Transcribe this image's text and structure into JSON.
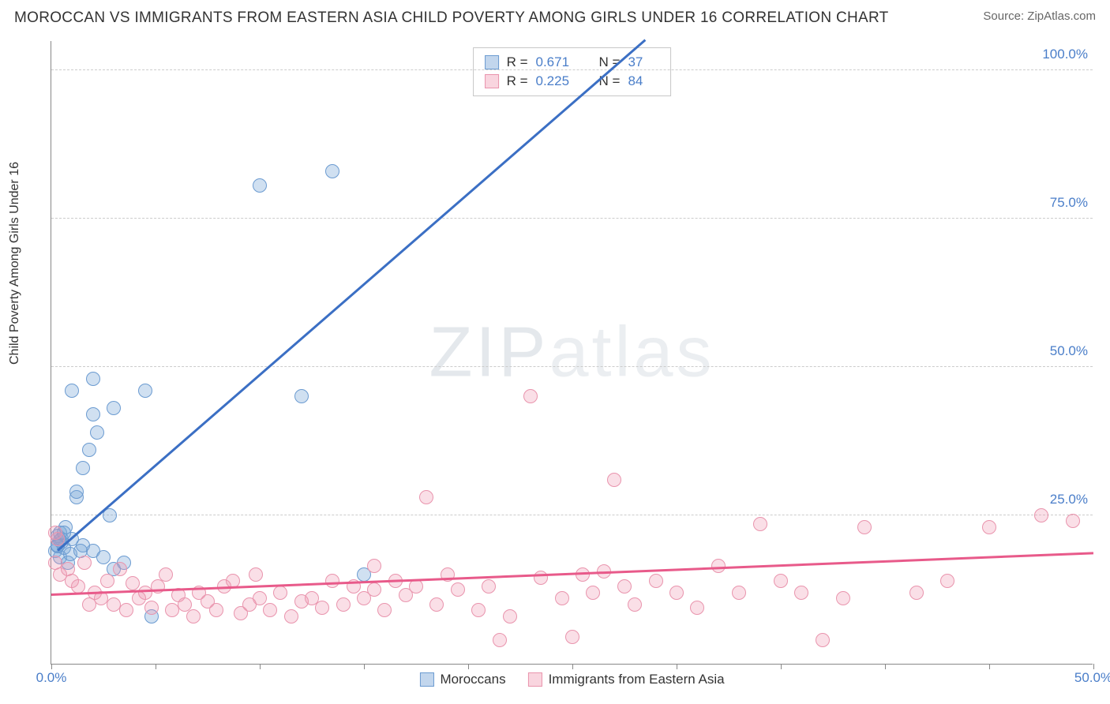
{
  "header": {
    "title": "MOROCCAN VS IMMIGRANTS FROM EASTERN ASIA CHILD POVERTY AMONG GIRLS UNDER 16 CORRELATION CHART",
    "source_label": "Source: ",
    "source_name": "ZipAtlas.com"
  },
  "chart": {
    "type": "scatter",
    "ylabel": "Child Poverty Among Girls Under 16",
    "watermark": "ZIPatlas",
    "background_color": "#ffffff",
    "grid_color": "#cccccc",
    "axis_color": "#888888",
    "xlim": [
      0,
      50
    ],
    "ylim": [
      0,
      105
    ],
    "xtick_positions": [
      0,
      5,
      10,
      15,
      20,
      25,
      30,
      35,
      40,
      45,
      50
    ],
    "xtick_labels": {
      "0": "0.0%",
      "50": "50.0%"
    },
    "ytick_positions": [
      25,
      50,
      75,
      100
    ],
    "ytick_labels": {
      "25": "25.0%",
      "50": "50.0%",
      "75": "75.0%",
      "100": "100.0%"
    },
    "marker_radius": 9,
    "series": [
      {
        "name": "Moroccans",
        "color_fill": "rgba(120,165,216,0.35)",
        "color_stroke": "#6b9bd1",
        "trend_color": "#3b6fc4",
        "stats": {
          "R_label": "R  =",
          "R": "0.671",
          "N_label": "N  =",
          "N": "37"
        },
        "trend": {
          "x1": 0.3,
          "y1": 19,
          "x2": 28.5,
          "y2": 105
        },
        "points": [
          [
            0.2,
            19
          ],
          [
            0.3,
            20
          ],
          [
            0.4,
            18
          ],
          [
            0.5,
            21
          ],
          [
            0.5,
            20.5
          ],
          [
            0.6,
            19.5
          ],
          [
            0.3,
            21.5
          ],
          [
            0.4,
            22
          ],
          [
            0.8,
            17
          ],
          [
            1.0,
            21
          ],
          [
            1.2,
            28
          ],
          [
            1.2,
            29
          ],
          [
            1.5,
            33
          ],
          [
            1.8,
            36
          ],
          [
            2.0,
            42
          ],
          [
            2.2,
            39
          ],
          [
            2.8,
            25
          ],
          [
            3.0,
            43
          ],
          [
            1.0,
            46
          ],
          [
            2.0,
            48
          ],
          [
            4.5,
            46
          ],
          [
            4.8,
            8
          ],
          [
            3.0,
            16
          ],
          [
            3.5,
            17
          ],
          [
            2.0,
            19
          ],
          [
            1.5,
            20
          ],
          [
            0.7,
            23
          ],
          [
            12.0,
            45
          ],
          [
            15.0,
            15
          ],
          [
            10.0,
            80.5
          ],
          [
            13.5,
            83
          ],
          [
            0.4,
            20.8
          ],
          [
            0.9,
            18.5
          ],
          [
            1.4,
            19
          ],
          [
            0.6,
            22
          ],
          [
            2.5,
            18
          ],
          [
            0.3,
            19.8
          ]
        ]
      },
      {
        "name": "Immigrants from Eastern Asia",
        "color_fill": "rgba(240,150,175,0.30)",
        "color_stroke": "#e994ad",
        "trend_color": "#e85a8a",
        "stats": {
          "R_label": "R  =",
          "R": "0.225",
          "N_label": "N  =",
          "N": "84"
        },
        "trend": {
          "x1": 0,
          "y1": 11.5,
          "x2": 50,
          "y2": 18.5
        },
        "points": [
          [
            0.2,
            22
          ],
          [
            0.3,
            21
          ],
          [
            0.2,
            17
          ],
          [
            0.4,
            15
          ],
          [
            0.8,
            16
          ],
          [
            1.0,
            14
          ],
          [
            1.3,
            13
          ],
          [
            1.6,
            17
          ],
          [
            1.8,
            10
          ],
          [
            2.1,
            12
          ],
          [
            2.4,
            11
          ],
          [
            2.7,
            14
          ],
          [
            3.0,
            10
          ],
          [
            3.3,
            16
          ],
          [
            3.6,
            9
          ],
          [
            3.9,
            13.5
          ],
          [
            4.2,
            11
          ],
          [
            4.5,
            12
          ],
          [
            4.8,
            9.5
          ],
          [
            5.1,
            13
          ],
          [
            5.5,
            15
          ],
          [
            5.8,
            9
          ],
          [
            6.1,
            11.5
          ],
          [
            6.4,
            10
          ],
          [
            6.8,
            8
          ],
          [
            7.1,
            12
          ],
          [
            7.5,
            10.5
          ],
          [
            7.9,
            9
          ],
          [
            8.3,
            13
          ],
          [
            8.7,
            14
          ],
          [
            9.1,
            8.5
          ],
          [
            9.5,
            10
          ],
          [
            10.0,
            11
          ],
          [
            10.5,
            9
          ],
          [
            11.0,
            12
          ],
          [
            11.5,
            8
          ],
          [
            12.0,
            10.5
          ],
          [
            12.5,
            11
          ],
          [
            13.0,
            9.5
          ],
          [
            13.5,
            14
          ],
          [
            14.0,
            10
          ],
          [
            14.5,
            13
          ],
          [
            15.0,
            11
          ],
          [
            15.5,
            12.5
          ],
          [
            16.0,
            9
          ],
          [
            16.5,
            14
          ],
          [
            17.0,
            11.5
          ],
          [
            17.5,
            13
          ],
          [
            18.0,
            28
          ],
          [
            18.5,
            10
          ],
          [
            19.5,
            12.5
          ],
          [
            20.5,
            9
          ],
          [
            21.0,
            13
          ],
          [
            21.5,
            4
          ],
          [
            22.0,
            8
          ],
          [
            23.0,
            45
          ],
          [
            23.5,
            14.5
          ],
          [
            24.5,
            11
          ],
          [
            25.0,
            4.5
          ],
          [
            25.5,
            15
          ],
          [
            26.0,
            12
          ],
          [
            26.5,
            15.5
          ],
          [
            27.0,
            31
          ],
          [
            27.5,
            13
          ],
          [
            28.0,
            10
          ],
          [
            29.0,
            14
          ],
          [
            30.0,
            12
          ],
          [
            31.0,
            9.5
          ],
          [
            32.0,
            16.5
          ],
          [
            33.0,
            12
          ],
          [
            34.0,
            23.5
          ],
          [
            35.0,
            14
          ],
          [
            36.0,
            12
          ],
          [
            37.0,
            4
          ],
          [
            38.0,
            11
          ],
          [
            39.0,
            23
          ],
          [
            41.5,
            12
          ],
          [
            43.0,
            14
          ],
          [
            45.0,
            23
          ],
          [
            47.5,
            25
          ],
          [
            49.0,
            24
          ],
          [
            15.5,
            16.5
          ],
          [
            19.0,
            15
          ],
          [
            9.8,
            15
          ]
        ]
      }
    ],
    "legend": {
      "items": [
        "Moroccans",
        "Immigrants from Eastern Asia"
      ]
    }
  }
}
